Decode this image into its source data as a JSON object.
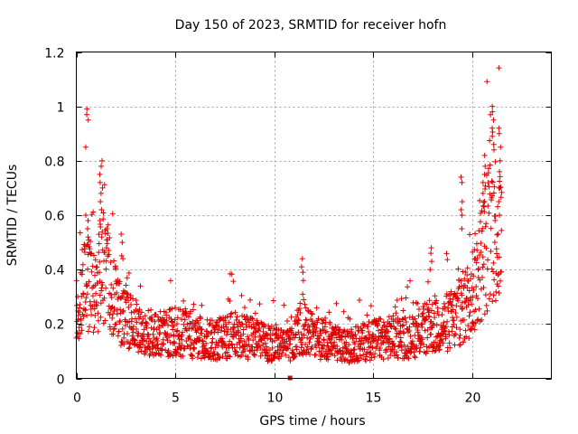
{
  "chart_data": {
    "type": "scatter",
    "title": "Day 150 of 2023, SRMTID for receiver hofn",
    "xlabel": "GPS time / hours",
    "ylabel": "SRMTID / TECUs",
    "xlim": [
      0,
      24
    ],
    "ylim": [
      0,
      1.2
    ],
    "xticks": [
      0,
      5,
      10,
      15,
      20
    ],
    "yticks": [
      0,
      0.2,
      0.4,
      0.6,
      0.8,
      1,
      1.2
    ],
    "ytick_labels": [
      "0",
      "0.2",
      "0.4",
      "0.6",
      "0.8",
      "1",
      "1.2"
    ],
    "grid": true,
    "marker": "+",
    "color": "#dd0000",
    "extra_point": {
      "x": 10.8,
      "y": 0.0,
      "marker": "square"
    },
    "series": [
      {
        "name": "SRMTID",
        "trend": {
          "x": [
            0,
            0.3,
            0.6,
            1.0,
            1.3,
            1.6,
            2.0,
            2.5,
            3,
            4,
            5,
            6,
            7,
            8,
            9,
            10,
            10.8,
            11.3,
            12,
            13,
            13.5,
            14,
            15,
            16,
            17,
            17.8,
            18.5,
            19.2,
            19.8,
            20.3,
            20.8,
            21.1,
            21.4
          ],
          "y": [
            0.28,
            0.33,
            0.38,
            0.3,
            0.45,
            0.38,
            0.28,
            0.22,
            0.19,
            0.17,
            0.18,
            0.16,
            0.15,
            0.17,
            0.15,
            0.13,
            0.13,
            0.2,
            0.16,
            0.14,
            0.12,
            0.13,
            0.15,
            0.16,
            0.16,
            0.2,
            0.2,
            0.24,
            0.3,
            0.4,
            0.55,
            0.6,
            0.55
          ]
        },
        "peaks": [
          {
            "x": 0.55,
            "ys": [
              0.99,
              0.97,
              0.95,
              0.85,
              0.6,
              0.58,
              0.55,
              0.52
            ]
          },
          {
            "x": 1.25,
            "ys": [
              0.8,
              0.78,
              0.75,
              0.72,
              0.7,
              0.68,
              0.65,
              0.62,
              0.58
            ]
          },
          {
            "x": 2.3,
            "ys": [
              0.53,
              0.5,
              0.44
            ]
          },
          {
            "x": 11.4,
            "ys": [
              0.44,
              0.41,
              0.39,
              0.36
            ]
          },
          {
            "x": 17.95,
            "ys": [
              0.48,
              0.46,
              0.43,
              0.4
            ]
          },
          {
            "x": 19.5,
            "ys": [
              0.74,
              0.72,
              0.65,
              0.62,
              0.6,
              0.55
            ]
          },
          {
            "x": 20.6,
            "ys": [
              0.82,
              0.78,
              0.75,
              0.72,
              0.68,
              0.65
            ]
          },
          {
            "x": 21.05,
            "ys": [
              1.0,
              0.98,
              0.95,
              0.92,
              0.89,
              0.86,
              0.84
            ]
          },
          {
            "x": 21.4,
            "ys": [
              0.92,
              0.9,
              0.85,
              0.8,
              0.76,
              0.7,
              0.65,
              0.6
            ]
          }
        ],
        "x_start": 0,
        "x_end": 21.5,
        "sample_step_hours": 0.012
      }
    ]
  }
}
